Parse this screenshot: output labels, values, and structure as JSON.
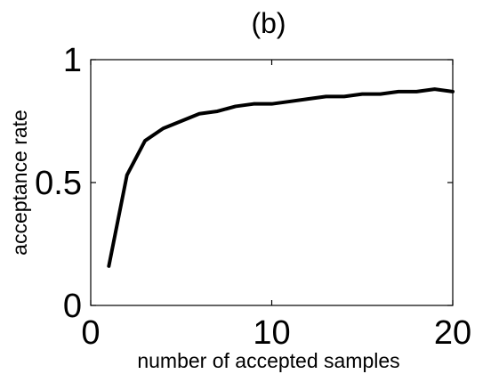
{
  "chart_data": {
    "type": "line",
    "title": "(b)",
    "xlabel": "number of accepted samples",
    "ylabel": "acceptance rate",
    "xlim": [
      0,
      20
    ],
    "ylim": [
      0,
      1
    ],
    "x_ticks": [
      {
        "value": 0,
        "label": "0"
      },
      {
        "value": 10,
        "label": "10"
      },
      {
        "value": 20,
        "label": "20"
      }
    ],
    "y_ticks": [
      {
        "value": 0,
        "label": "0"
      },
      {
        "value": 0.5,
        "label": "0.5"
      },
      {
        "value": 1,
        "label": "1"
      }
    ],
    "grid": false,
    "line_color": "#000000",
    "series": [
      {
        "x": [
          1,
          2,
          3,
          4,
          5,
          6,
          7,
          8,
          9,
          10,
          11,
          12,
          13,
          14,
          15,
          16,
          17,
          18,
          19,
          20
        ],
        "values": [
          0.16,
          0.53,
          0.67,
          0.72,
          0.75,
          0.78,
          0.79,
          0.81,
          0.82,
          0.82,
          0.83,
          0.84,
          0.85,
          0.85,
          0.86,
          0.86,
          0.87,
          0.87,
          0.88,
          0.87
        ]
      }
    ]
  }
}
